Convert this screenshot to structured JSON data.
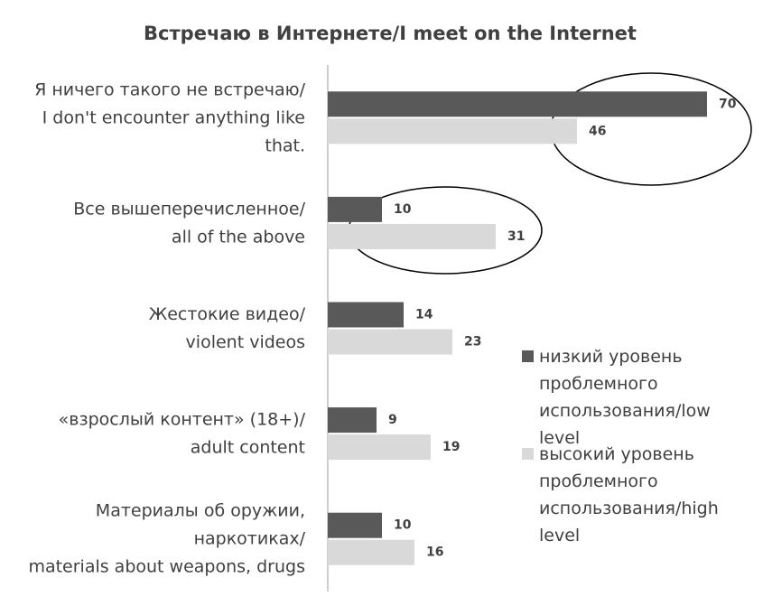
{
  "chart_data": {
    "type": "bar",
    "orientation": "horizontal",
    "title": "Встречаю в Интернете/I meet on the Internet",
    "categories": [
      "Я ничего такого не встречаю/\nI don't encounter anything like\nthat.",
      "Все вышеперечисленное/\nall of the above",
      "Жестокие видео/\nviolent videos",
      "«взрослый контент» (18+)/\nadult content",
      "Материалы об оружии,\nнаркотиках/\nmaterials about weapons, drugs"
    ],
    "series": [
      {
        "name": "низкий уровень\nпроблемного\nиспользования/low\nlevel",
        "color": "#595959",
        "values": [
          70,
          10,
          14,
          9,
          10
        ]
      },
      {
        "name": "высокий уровень\nпроблемного\nиспользования/high\nlevel",
        "color": "#d9d9d9",
        "values": [
          46,
          31,
          23,
          19,
          16
        ]
      }
    ],
    "xlim": [
      0,
      70
    ]
  }
}
